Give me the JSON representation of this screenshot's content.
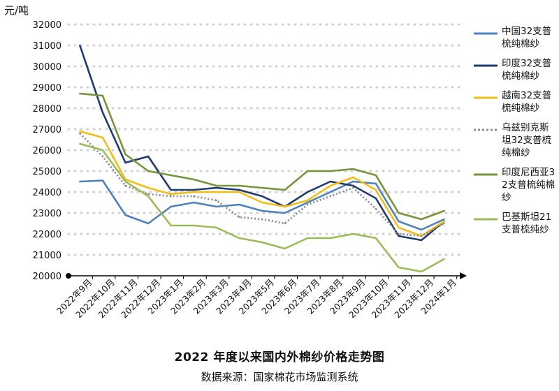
{
  "chart_data": {
    "type": "line",
    "title": "2022 年度以来国内外棉纱价格走势图",
    "source": "数据来源：国家棉花市场监测系统",
    "ylabel": "元/吨",
    "ylim": [
      20000,
      32000
    ],
    "yticks": [
      "32000",
      "31000",
      "30000",
      "29000",
      "28000",
      "27000",
      "26000",
      "25000",
      "24000",
      "23000",
      "22000",
      "21000",
      "20000"
    ],
    "categories": [
      "2022年9月",
      "2022年10月",
      "2022年11月",
      "2022年12月",
      "2023年1月",
      "2023年2月",
      "2023年3月",
      "2023年4月",
      "2023年5月",
      "2023年6月",
      "2023年7月",
      "2023年8月",
      "2023年9月",
      "2023年10月",
      "2023年11月",
      "2023年12月",
      "2024年1月"
    ],
    "grid": "horizontal-dotted",
    "legend_position": "right",
    "series": [
      {
        "name": "中国32支普梳纯棉纱",
        "color": "#4f81bd",
        "dash": "solid",
        "values": [
          24500,
          24550,
          22900,
          22500,
          23300,
          23500,
          23300,
          23400,
          23100,
          23000,
          23500,
          24000,
          24500,
          24400,
          22600,
          22200,
          22700
        ]
      },
      {
        "name": "印度32支普梳纯棉纱",
        "color": "#1f3a6e",
        "dash": "solid",
        "values": [
          31000,
          27800,
          25400,
          25700,
          24100,
          24100,
          24200,
          24100,
          23800,
          23300,
          24000,
          24500,
          24300,
          23700,
          21900,
          21700,
          22600
        ]
      },
      {
        "name": "越南32支普梳纯棉纱",
        "color": "#f0be1a",
        "dash": "solid",
        "values": [
          26900,
          26600,
          24600,
          24200,
          23900,
          24000,
          24000,
          24000,
          23500,
          23300,
          23600,
          24300,
          24700,
          24100,
          22300,
          21900,
          22600
        ]
      },
      {
        "name": "乌兹别克斯坦32支普梳纯棉纱",
        "color": "#8c8c8c",
        "dash": "dotted",
        "values": [
          26800,
          25700,
          24300,
          23900,
          23800,
          23800,
          23600,
          22800,
          22700,
          22500,
          23400,
          23800,
          24200,
          23200,
          22000,
          21900,
          22500
        ]
      },
      {
        "name": "印度尼西亚32支普梳纯棉纱",
        "color": "#77933c",
        "dash": "solid",
        "values": [
          28700,
          28600,
          25800,
          25000,
          24800,
          24600,
          24300,
          24300,
          24200,
          24100,
          25000,
          25000,
          25100,
          24800,
          23000,
          22700,
          23100
        ]
      },
      {
        "name": "巴基斯坦21支普梳纯纱",
        "color": "#9bbb59",
        "dash": "solid",
        "values": [
          26300,
          26000,
          24500,
          23800,
          22400,
          22400,
          22300,
          21800,
          21600,
          21300,
          21800,
          21800,
          22000,
          21800,
          20400,
          20200,
          20800
        ]
      }
    ]
  }
}
